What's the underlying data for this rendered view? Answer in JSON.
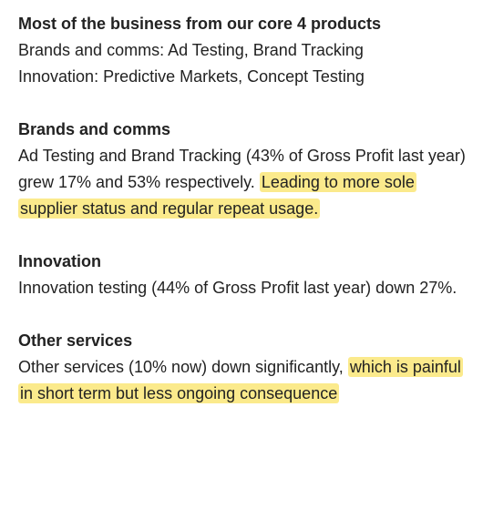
{
  "sections": [
    {
      "heading": "Most of the business from our core 4 products",
      "lines": [
        "Brands and comms: Ad Testing, Brand Tracking",
        "Innovation: Predictive Markets, Concept Testing"
      ]
    },
    {
      "heading": "Brands and comms",
      "text": "Ad Testing and Brand Tracking (43% of Gross Profit last year) grew 17% and 53% respectively. ",
      "highlight": "Leading to more sole supplier status and regular repeat usage."
    },
    {
      "heading": "Innovation",
      "text": "Innovation testing (44% of Gross Profit last year) down 27%."
    },
    {
      "heading": "Other services",
      "text": "Other services (10% now) down significantly, ",
      "highlight": "which is painful in short term but less ongoing consequence"
    }
  ],
  "colors": {
    "highlight": "#fbea8c",
    "text": "#222222"
  }
}
